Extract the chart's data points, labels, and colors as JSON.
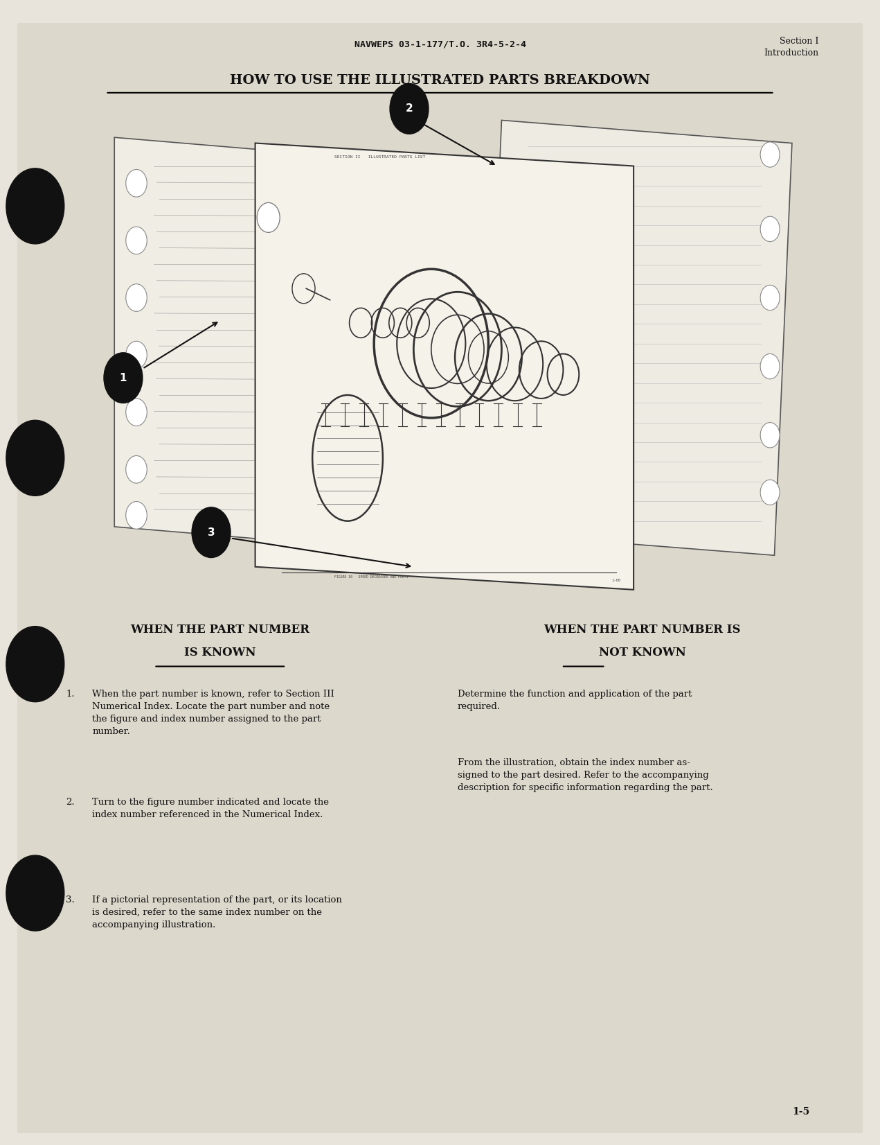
{
  "bg_color": "#e8e4dc",
  "page_color": "#ddd8cc",
  "header_doc_num": "NAVWEPS 03-1-177/T.O. 3R4-5-2-4",
  "header_section": "Section I\nIntroduction",
  "title": "HOW TO USE THE ILLUSTRATED PARTS BREAKDOWN",
  "left_heading_line1": "WHEN THE PART NUMBER",
  "left_heading_line2": "IS KNOWN",
  "right_heading_line1": "WHEN THE PART NUMBER IS",
  "right_heading_line2": "NOT KNOWN",
  "right_para1": "Determine the function and application of the part\nrequired.",
  "right_para2": "From the illustration, obtain the index number as-\nsigned to the part desired. Refer to the accompanying\ndescription for specific information regarding the part.",
  "page_num": "1-5",
  "left_item1_num": "1.",
  "left_item1_text": "When the part number is known, refer to Section III\nNumerical Index. Locate the part number and note\nthe figure and index number assigned to the part\nnumber.",
  "left_item2_num": "2.",
  "left_item2_text": "Turn to the figure number indicated and locate the\nindex number referenced in the Numerical Index.",
  "left_item3_num": "3.",
  "left_item3_text": "If a pictorial representation of the part, or its location\nis desired, refer to the same index number on the\naccompanying illustration."
}
